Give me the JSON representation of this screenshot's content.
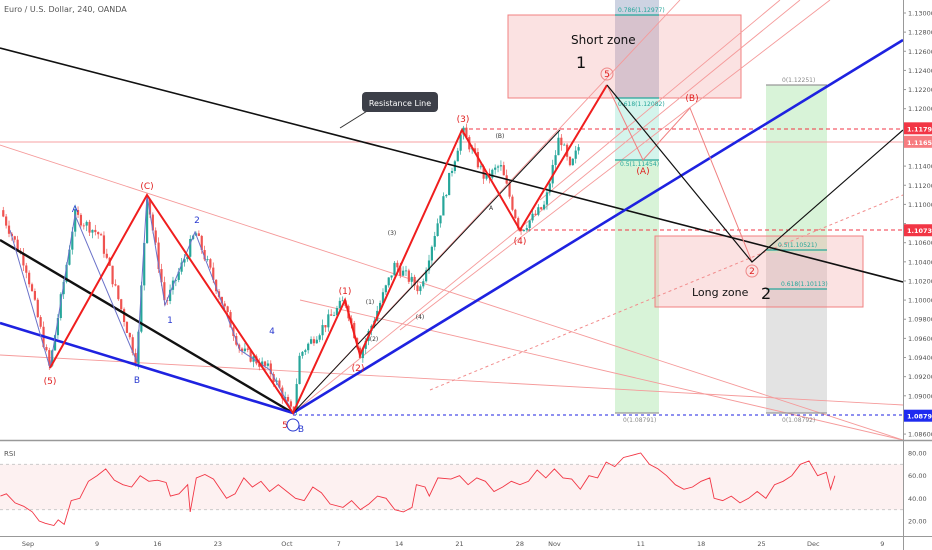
{
  "header": {
    "title": "Euro / U.S. Dollar, 240, OANDA"
  },
  "price_axis": {
    "ticks": [
      "1.13000",
      "1.12800",
      "1.12600",
      "1.12400",
      "1.12200",
      "1.12000",
      "1.11800",
      "1.11600",
      "1.11400",
      "1.11200",
      "1.11000",
      "1.10800",
      "1.10600",
      "1.10400",
      "1.10200",
      "1.10000",
      "1.09800",
      "1.09600",
      "1.09400",
      "1.09200",
      "1.09000",
      "1.08800",
      "1.08600"
    ],
    "tick_values": [
      1.13,
      1.128,
      1.126,
      1.124,
      1.122,
      1.12,
      1.118,
      1.116,
      1.114,
      1.112,
      1.11,
      1.108,
      1.106,
      1.104,
      1.102,
      1.1,
      1.098,
      1.096,
      1.094,
      1.092,
      1.09,
      1.088,
      1.086
    ],
    "markers": [
      {
        "label": "1.11795",
        "value": 1.11795,
        "color": "#f23645"
      },
      {
        "label": "1.11654",
        "value": 1.11654,
        "color": "#f77c80"
      },
      {
        "label": "1.10730",
        "value": 1.1073,
        "color": "#f23645"
      },
      {
        "label": "1.08792",
        "value": 1.08792,
        "color": "#1e2bf0"
      }
    ]
  },
  "rsi": {
    "title": "RSI",
    "ticks": [
      "80.00",
      "60.00",
      "40.00",
      "20.00"
    ],
    "tick_values": [
      80,
      60,
      40,
      20
    ],
    "bands": [
      70,
      30
    ],
    "points": [
      [
        -3.2,
        42
      ],
      [
        -2.5,
        44
      ],
      [
        -1.5,
        36
      ],
      [
        -0.5,
        33
      ],
      [
        0.5,
        28
      ],
      [
        1.3,
        20
      ],
      [
        2,
        18
      ],
      [
        3,
        16
      ],
      [
        3.5,
        21
      ],
      [
        4.2,
        17
      ],
      [
        5,
        38
      ],
      [
        6,
        40
      ],
      [
        7,
        55
      ],
      [
        8,
        60
      ],
      [
        9,
        66
      ],
      [
        10,
        56
      ],
      [
        11,
        52
      ],
      [
        12,
        50
      ],
      [
        13,
        60
      ],
      [
        14,
        55
      ],
      [
        15,
        56
      ],
      [
        16,
        54
      ],
      [
        16.5,
        42
      ],
      [
        17.5,
        44
      ],
      [
        18.5,
        52
      ],
      [
        18.8,
        28
      ],
      [
        19.5,
        58
      ],
      [
        20.5,
        61
      ],
      [
        21.5,
        57
      ],
      [
        23,
        40
      ],
      [
        24,
        44
      ],
      [
        25,
        58
      ],
      [
        26,
        50
      ],
      [
        27,
        55
      ],
      [
        28,
        46
      ],
      [
        29,
        52
      ],
      [
        30,
        46
      ],
      [
        31,
        40
      ],
      [
        32,
        38
      ],
      [
        33,
        50
      ],
      [
        34,
        45
      ],
      [
        35,
        35
      ],
      [
        36.5,
        32
      ],
      [
        37.5,
        38
      ],
      [
        38.5,
        30
      ],
      [
        39.5,
        35
      ],
      [
        40.5,
        42
      ],
      [
        41.5,
        40
      ],
      [
        42.5,
        30
      ],
      [
        43.5,
        28
      ],
      [
        44.5,
        32
      ],
      [
        45,
        52
      ],
      [
        46,
        50
      ],
      [
        46.5,
        42
      ],
      [
        47.5,
        58
      ],
      [
        49,
        57
      ],
      [
        50,
        60
      ],
      [
        51,
        52
      ],
      [
        52,
        58
      ],
      [
        53,
        55
      ],
      [
        54,
        46
      ],
      [
        55,
        50
      ],
      [
        56,
        55
      ],
      [
        57,
        52
      ],
      [
        58,
        55
      ],
      [
        59,
        65
      ],
      [
        60,
        58
      ],
      [
        61,
        66
      ],
      [
        62,
        58
      ],
      [
        63,
        57
      ],
      [
        64,
        48
      ],
      [
        65,
        60
      ],
      [
        66,
        58
      ],
      [
        67,
        72
      ],
      [
        68,
        68
      ],
      [
        69,
        76
      ],
      [
        70,
        78
      ],
      [
        71,
        80
      ],
      [
        72,
        70
      ],
      [
        73,
        66
      ],
      [
        74,
        60
      ],
      [
        75,
        52
      ],
      [
        76,
        48
      ],
      [
        77,
        50
      ],
      [
        78,
        55
      ],
      [
        79,
        58
      ],
      [
        79.5,
        40
      ],
      [
        80.5,
        38
      ],
      [
        81.5,
        42
      ],
      [
        82.5,
        36
      ],
      [
        83.5,
        40
      ],
      [
        84.5,
        46
      ],
      [
        85.5,
        40
      ],
      [
        86.5,
        52
      ],
      [
        87.5,
        55
      ],
      [
        88.5,
        60
      ],
      [
        89.5,
        70
      ],
      [
        90.5,
        73
      ],
      [
        91.5,
        60
      ],
      [
        92.5,
        63
      ],
      [
        93,
        48
      ],
      [
        93.5,
        60
      ]
    ]
  },
  "time_axis": {
    "labels": [
      "Sep",
      "9",
      "16",
      "23",
      "Oct",
      "7",
      "14",
      "21",
      "28",
      "Nov",
      "11",
      "18",
      "25",
      "Dec",
      "9"
    ],
    "days": [
      0,
      8,
      15,
      22,
      30,
      36,
      43,
      50,
      57,
      61,
      71,
      78,
      85,
      91,
      99
    ]
  },
  "chart_data": {
    "type": "candlestick",
    "symbol": "EURUSD",
    "interval": "240",
    "ylim": [
      1.085,
      1.131
    ],
    "x_unit": "days since Sep 1",
    "price_path": [
      [
        -3.2,
        1.1094
      ],
      [
        -0.3,
        1.1037
      ],
      [
        2.5,
        1.0929
      ],
      [
        5.4,
        1.1089
      ],
      [
        8.3,
        1.1068
      ],
      [
        12.6,
        1.0935
      ],
      [
        13.8,
        1.111
      ],
      [
        15.9,
        1.0995
      ],
      [
        19.4,
        1.1071
      ],
      [
        24.6,
        1.0948
      ],
      [
        28.0,
        1.0927
      ],
      [
        30.7,
        1.088
      ],
      [
        31.5,
        1.0943
      ],
      [
        36.7,
        1.1
      ],
      [
        38.5,
        1.0943
      ],
      [
        42.5,
        1.1037
      ],
      [
        45.4,
        1.1011
      ],
      [
        50.3,
        1.1178
      ],
      [
        53.0,
        1.1126
      ],
      [
        54.7,
        1.1141
      ],
      [
        57.0,
        1.1073
      ],
      [
        59.9,
        1.1099
      ],
      [
        61.6,
        1.1173
      ],
      [
        62.8,
        1.1136
      ],
      [
        64.0,
        1.1165
      ]
    ]
  },
  "annotations": {
    "short_zone": {
      "label": "Short zone",
      "number": "1"
    },
    "long_zone": {
      "label": "Long zone",
      "number": "2"
    },
    "resistance": "Resistance Line",
    "fib_left": [
      "0.786(1.12977)",
      "0.618(1.12082)",
      "0.5(1.11454)",
      "0(1.08791)"
    ],
    "fib_right": [
      "0(1.12251)",
      "0.5(1.10521)",
      "0.618(1.10113)",
      "0(1.08792)"
    ],
    "waves_red": [
      "(5)",
      "(C)",
      "(1)",
      "(2)",
      "(3)",
      "(4)",
      "5",
      "(A)",
      "(B)",
      "2",
      "5"
    ],
    "waves_blue": [
      "A",
      "B",
      "1",
      "2",
      "4",
      "B"
    ],
    "waves_black": [
      "(1)",
      "(2)",
      "(3)",
      "(4)",
      "(B)",
      "A"
    ]
  },
  "colors": {
    "up": "#26a69a",
    "down": "#ef5350",
    "rsi": "#f23645",
    "blue_trend": "#1e22e0"
  }
}
